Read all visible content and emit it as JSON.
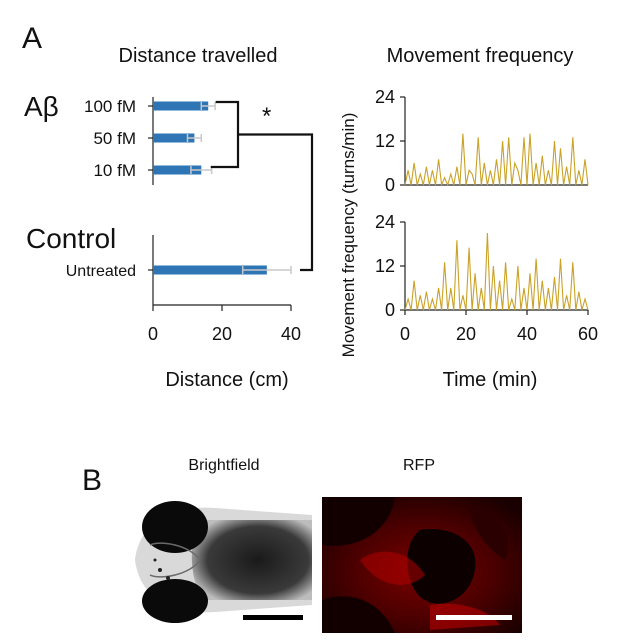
{
  "panel_labels": {
    "a": "A",
    "b": "B"
  },
  "chart_data": [
    {
      "type": "bar",
      "orientation": "horizontal",
      "title": "Distance travelled",
      "xlabel": "Distance (cm)",
      "xlim": [
        0,
        40
      ],
      "xticks": [
        0,
        20,
        40
      ],
      "bar_color": "#2e75b6",
      "error_color": "#c8c8c8",
      "groups": [
        {
          "label": "Aβ",
          "categories": [
            "100 fM",
            "50 fM",
            "10 fM"
          ],
          "values": [
            16,
            12,
            14
          ],
          "errors": [
            2,
            2,
            3
          ]
        },
        {
          "label": "Control",
          "categories": [
            "Untreated"
          ],
          "values": [
            33
          ],
          "errors": [
            7
          ]
        }
      ],
      "significance": "*"
    },
    {
      "type": "line",
      "title": "Movement frequency",
      "ylabel": "Movement frequency (turns/min)",
      "xlabel": "Time (min)",
      "xlim": [
        0,
        60
      ],
      "xticks": [
        0,
        20,
        40,
        60
      ],
      "ylim": [
        0,
        24
      ],
      "yticks": [
        0,
        12,
        24
      ],
      "line_color": "#c9a227",
      "series": [
        {
          "x": [
            0,
            1,
            2,
            3,
            4,
            5,
            6,
            7,
            8,
            9,
            10,
            11,
            12,
            13,
            14,
            15,
            16,
            17,
            18,
            19,
            20,
            21,
            22,
            23,
            24,
            25,
            26,
            27,
            28,
            29,
            30,
            31,
            32,
            33,
            34,
            35,
            36,
            37,
            38,
            39,
            40,
            41,
            42,
            43,
            44,
            45,
            46,
            47,
            48,
            49,
            50,
            51,
            52,
            53,
            54,
            55,
            56,
            57,
            58,
            59,
            60
          ],
          "y": [
            0,
            4,
            0,
            6,
            0,
            3,
            0,
            5,
            0,
            4,
            0,
            7,
            0,
            2,
            0,
            3,
            0,
            5,
            0,
            14,
            0,
            4,
            3,
            0,
            13,
            0,
            6,
            0,
            4,
            0,
            7,
            0,
            12,
            0,
            13,
            0,
            6,
            4,
            0,
            13,
            0,
            14,
            0,
            6,
            0,
            8,
            0,
            4,
            0,
            12,
            0,
            10,
            0,
            5,
            0,
            13,
            0,
            4,
            0,
            7,
            0
          ]
        },
        {
          "x": [
            0,
            1,
            2,
            3,
            4,
            5,
            6,
            7,
            8,
            9,
            10,
            11,
            12,
            13,
            14,
            15,
            16,
            17,
            18,
            19,
            20,
            21,
            22,
            23,
            24,
            25,
            26,
            27,
            28,
            29,
            30,
            31,
            32,
            33,
            34,
            35,
            36,
            37,
            38,
            39,
            40,
            41,
            42,
            43,
            44,
            45,
            46,
            47,
            48,
            49,
            50,
            51,
            52,
            53,
            54,
            55,
            56,
            57,
            58,
            59,
            60
          ],
          "y": [
            0,
            3,
            0,
            8,
            0,
            4,
            0,
            5,
            0,
            3,
            0,
            6,
            0,
            13,
            0,
            6,
            0,
            19,
            0,
            4,
            0,
            17,
            0,
            10,
            0,
            6,
            0,
            21,
            0,
            12,
            0,
            8,
            0,
            13,
            0,
            3,
            0,
            12,
            0,
            6,
            0,
            10,
            0,
            14,
            0,
            8,
            0,
            6,
            0,
            9,
            0,
            14,
            0,
            4,
            0,
            13,
            0,
            5,
            0,
            3,
            0
          ]
        }
      ]
    }
  ],
  "images": {
    "brightfield_label": "Brightfield",
    "rfp_label": "RFP"
  }
}
